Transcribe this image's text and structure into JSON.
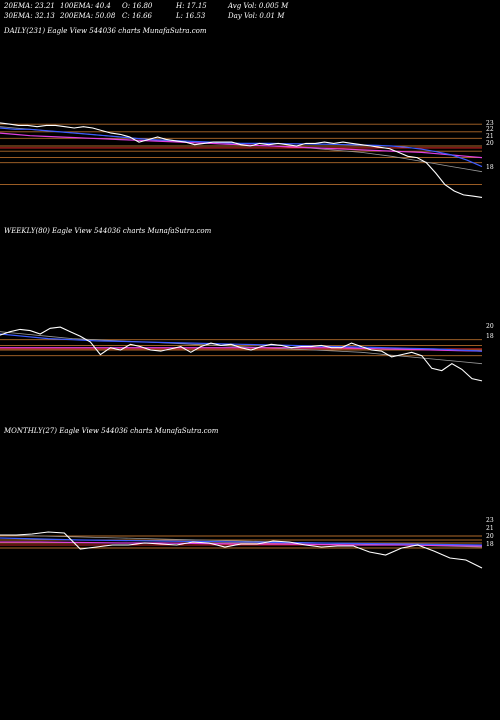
{
  "header": {
    "ema20": "20EMA: 23.21",
    "ema30": "30EMA: 32.13",
    "ema100": "100EMA: 40.4",
    "ema200": "200EMA: 50.08",
    "open": "O: 16.80",
    "close": "C: 16.66",
    "high": "H: 17.15",
    "low": "L: 16.53",
    "avg_vol": "Avg Vol: 0.005 M",
    "day_vol": "Day Vol: 0.01 M"
  },
  "panels": [
    {
      "label": "DAILY(231) Eagle   View  544036  charts MunafaSutra.com",
      "ticks": [
        "23",
        "22",
        "21",
        "20",
        "18"
      ]
    },
    {
      "label": "WEEKLY(80) Eagle   View  544036  charts MunafaSutra.com",
      "ticks": [
        "20",
        "18"
      ]
    },
    {
      "label": "MONTHLY(27) Eagle   View  544036  charts MunafaSutra.com",
      "ticks": [
        "23",
        "21",
        "20",
        "18"
      ]
    }
  ],
  "colors": {
    "price": "#ffffff",
    "blue": "#3c5cff",
    "magenta": "#e040e0",
    "hline": "#b06a2a",
    "red": "#ff3030",
    "grey": "#9a9a9a"
  },
  "chart_data": [
    {
      "type": "line",
      "title": "DAILY(231)",
      "ylim": [
        17.5,
        24.5
      ],
      "price": [
        23.5,
        23.4,
        23.3,
        23.3,
        23.2,
        23.3,
        23.3,
        23.2,
        23.1,
        23.2,
        23.1,
        22.9,
        22.7,
        22.6,
        22.4,
        22.0,
        22.2,
        22.4,
        22.2,
        22.1,
        22.0,
        21.8,
        21.9,
        22.0,
        22.0,
        22.0,
        21.8,
        21.7,
        21.9,
        21.8,
        21.9,
        21.8,
        21.7,
        21.9,
        21.9,
        22.0,
        21.9,
        22.0,
        21.9,
        21.8,
        21.7,
        21.6,
        21.5,
        21.2,
        20.9,
        20.8,
        20.4,
        19.6,
        18.7,
        18.2,
        17.9,
        17.8,
        17.7
      ],
      "ma_blue": [
        23.1,
        23.0,
        23.0,
        22.9,
        22.8,
        22.7,
        22.6,
        22.5,
        22.4,
        22.3,
        22.2,
        22.15,
        22.1,
        22.05,
        22.0,
        21.95,
        21.9,
        21.9,
        21.9,
        21.88,
        21.86,
        21.85,
        21.83,
        21.8,
        21.78,
        21.75,
        21.7,
        21.6,
        21.45,
        21.25,
        21.0,
        20.6,
        20.1
      ],
      "ma_magenta": [
        22.7,
        22.6,
        22.5,
        22.45,
        22.4,
        22.35,
        22.3,
        22.25,
        22.2,
        22.15,
        22.1,
        22.05,
        22.0,
        21.95,
        21.9,
        21.85,
        21.8,
        21.75,
        21.7,
        21.65,
        21.6,
        21.55,
        21.5,
        21.45,
        21.4,
        21.35,
        21.3,
        21.25,
        21.2,
        21.1,
        21.0,
        20.9,
        20.8
      ],
      "ma_grey": [
        23.2,
        23.1,
        23.0,
        22.9,
        22.8,
        22.7,
        22.6,
        22.5,
        22.4,
        22.3,
        22.2,
        22.1,
        22.0,
        21.95,
        21.9,
        21.85,
        21.8,
        21.75,
        21.7,
        21.65,
        21.6,
        21.5,
        21.4,
        21.3,
        21.2,
        21.05,
        20.9,
        20.7,
        20.5,
        20.3,
        20.1,
        19.9,
        19.7
      ],
      "hlines": [
        23.4,
        22.8,
        22.3,
        21.7,
        21.3,
        20.8,
        20.4,
        18.7
      ],
      "red_level": 21.55
    },
    {
      "type": "line",
      "title": "WEEKLY(80)",
      "ylim": [
        17.5,
        24.5
      ],
      "price": [
        22.3,
        22.6,
        22.8,
        22.7,
        22.4,
        22.9,
        23.0,
        22.6,
        22.2,
        21.7,
        20.6,
        21.2,
        21.0,
        21.5,
        21.3,
        21.0,
        20.9,
        21.1,
        21.3,
        20.8,
        21.3,
        21.6,
        21.4,
        21.5,
        21.2,
        21.0,
        21.3,
        21.5,
        21.4,
        21.2,
        21.3,
        21.3,
        21.4,
        21.2,
        21.2,
        21.6,
        21.3,
        21.0,
        20.9,
        20.4,
        20.6,
        20.8,
        20.5,
        19.4,
        19.2,
        19.8,
        19.3,
        18.5,
        18.3
      ],
      "ma_blue": [
        22.4,
        22.2,
        22.0,
        21.9,
        21.8,
        21.75,
        21.7,
        21.65,
        21.6,
        21.55,
        21.5,
        21.45,
        21.4,
        21.35,
        21.3,
        21.25,
        21.2,
        21.15,
        21.1,
        21.0,
        20.9
      ],
      "ma_magenta": [
        21.2,
        21.2,
        21.2,
        21.2,
        21.2,
        21.2,
        21.2,
        21.2,
        21.2,
        21.2,
        21.2,
        21.2,
        21.2,
        21.2,
        21.2,
        21.15,
        21.1,
        21.05,
        21.0,
        20.95,
        20.9
      ],
      "ma_grey": [
        22.6,
        22.4,
        22.2,
        22.0,
        21.9,
        21.8,
        21.7,
        21.6,
        21.5,
        21.4,
        21.3,
        21.2,
        21.1,
        21.0,
        20.9,
        20.8,
        20.6,
        20.4,
        20.2,
        20.0,
        19.8
      ],
      "hlines": [
        21.9,
        21.4,
        21.0,
        20.5
      ],
      "red_level": 21.1
    },
    {
      "type": "line",
      "title": "MONTHLY(27)",
      "ylim": [
        17.5,
        24.5
      ],
      "price": [
        22.0,
        22.0,
        22.1,
        22.3,
        22.2,
        20.6,
        20.8,
        21.0,
        21.0,
        21.2,
        21.1,
        21.0,
        21.3,
        21.2,
        20.8,
        21.1,
        21.1,
        21.4,
        21.3,
        21.0,
        20.8,
        20.9,
        20.9,
        20.3,
        20.0,
        20.7,
        21.0,
        20.4,
        19.7,
        19.5,
        18.7
      ],
      "ma_blue": [
        21.7,
        21.6,
        21.5,
        21.45,
        21.4,
        21.35,
        21.3,
        21.25,
        21.2,
        21.15,
        21.1,
        21.05,
        21.0
      ],
      "ma_magenta": [
        21.3,
        21.3,
        21.25,
        21.2,
        21.2,
        21.15,
        21.1,
        21.1,
        21.05,
        21.0,
        21.0,
        20.95,
        20.9
      ],
      "ma_grey": [
        22.0,
        21.9,
        21.8,
        21.7,
        21.6,
        21.5,
        21.4,
        21.3,
        21.2,
        21.1,
        21.0,
        20.9,
        20.8
      ],
      "hlines": [
        21.9,
        21.5,
        21.2,
        20.7
      ],
      "red_level": 21.0
    }
  ]
}
